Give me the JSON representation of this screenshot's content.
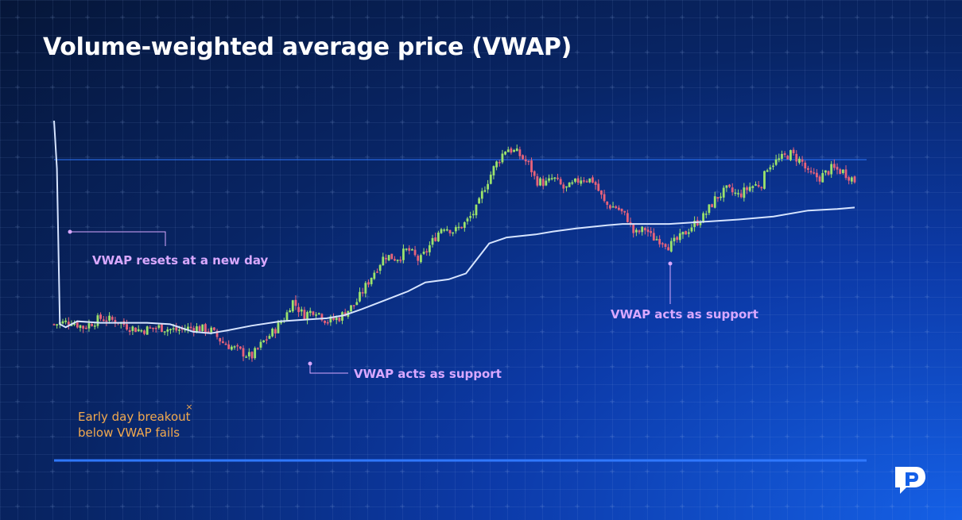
{
  "title": "Volume-weighted average price (VWAP)",
  "colors": {
    "up_candle": "#9be36b",
    "down_candle": "#e8627a",
    "vwap_line": "#d6e4ff",
    "reference_line": "#2f78ff",
    "annotation_purple": "#d9a8ff",
    "annotation_orange": "#f2a94e"
  },
  "annotations": {
    "reset": "VWAP resets at a new day",
    "support_1": "VWAP acts as support",
    "support_2": "VWAP acts as support",
    "breakout_line1": "Early day breakout",
    "breakout_line2": "below VWAP fails"
  },
  "logo": {
    "icon": "brand-p-icon"
  },
  "chart_data": {
    "type": "candlestick",
    "title": "Volume-weighted average price (VWAP)",
    "xlabel": "",
    "ylabel": "",
    "grid": true,
    "ylim": [
      0,
      100
    ],
    "price_path": [
      [
        0,
        28
      ],
      [
        3,
        29
      ],
      [
        5,
        27
      ],
      [
        8,
        30
      ],
      [
        11,
        29
      ],
      [
        13,
        27
      ],
      [
        15,
        26
      ],
      [
        18,
        27
      ],
      [
        21,
        26
      ],
      [
        24,
        27
      ],
      [
        27,
        26
      ],
      [
        29,
        22
      ],
      [
        32,
        19
      ],
      [
        34,
        17
      ],
      [
        36,
        22
      ],
      [
        38,
        26
      ],
      [
        40,
        31
      ],
      [
        41,
        36
      ],
      [
        43,
        31
      ],
      [
        45,
        33
      ],
      [
        47,
        29
      ],
      [
        49,
        30
      ],
      [
        52,
        35
      ],
      [
        55,
        45
      ],
      [
        57,
        51
      ],
      [
        59,
        50
      ],
      [
        61,
        53
      ],
      [
        63,
        49
      ],
      [
        65,
        55
      ],
      [
        67,
        61
      ],
      [
        69,
        59
      ],
      [
        71,
        62
      ],
      [
        73,
        67
      ],
      [
        74,
        73
      ],
      [
        76,
        81
      ],
      [
        78,
        87
      ],
      [
        80,
        85
      ],
      [
        82,
        81
      ],
      [
        83,
        76
      ],
      [
        85,
        75
      ],
      [
        86,
        77
      ],
      [
        88,
        73
      ],
      [
        89,
        74
      ],
      [
        91,
        77
      ],
      [
        93,
        76
      ],
      [
        95,
        68
      ],
      [
        97,
        67
      ],
      [
        99,
        63
      ],
      [
        100,
        58
      ],
      [
        102,
        60
      ],
      [
        103,
        57
      ],
      [
        105,
        56
      ],
      [
        106,
        54
      ],
      [
        108,
        57
      ],
      [
        110,
        61
      ],
      [
        112,
        64
      ],
      [
        114,
        70
      ],
      [
        116,
        73
      ],
      [
        118,
        71
      ],
      [
        120,
        74
      ],
      [
        122,
        75
      ],
      [
        123,
        81
      ],
      [
        125,
        83
      ],
      [
        127,
        85
      ],
      [
        129,
        82
      ],
      [
        130,
        78
      ],
      [
        132,
        77
      ],
      [
        134,
        80
      ],
      [
        136,
        79
      ],
      [
        138,
        76
      ]
    ],
    "vwap_path": [
      [
        0,
        96
      ],
      [
        0.5,
        80
      ],
      [
        1,
        28
      ],
      [
        2,
        27
      ],
      [
        4,
        29
      ],
      [
        8,
        28.5
      ],
      [
        16,
        28.5
      ],
      [
        20,
        28
      ],
      [
        24,
        25.5
      ],
      [
        27,
        25
      ],
      [
        30,
        26
      ],
      [
        34,
        27.5
      ],
      [
        39,
        29
      ],
      [
        43,
        29.5
      ],
      [
        47,
        30
      ],
      [
        50,
        31
      ],
      [
        53,
        33
      ],
      [
        57,
        36
      ],
      [
        61,
        39
      ],
      [
        64,
        42
      ],
      [
        68,
        43
      ],
      [
        71,
        45
      ],
      [
        73,
        50
      ],
      [
        75,
        55
      ],
      [
        78,
        57
      ],
      [
        83,
        58
      ],
      [
        86,
        59
      ],
      [
        90,
        60
      ],
      [
        95,
        61
      ],
      [
        98,
        61.5
      ],
      [
        106,
        61.5
      ],
      [
        110,
        62
      ],
      [
        118,
        63
      ],
      [
        124,
        64
      ],
      [
        130,
        66
      ],
      [
        135,
        66.5
      ],
      [
        138,
        67
      ]
    ],
    "reference_level": 83
  }
}
